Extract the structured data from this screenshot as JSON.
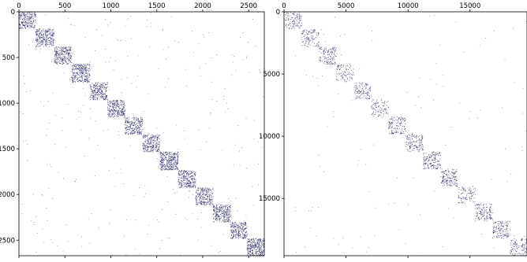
{
  "chart_data": [
    {
      "type": "heatmap",
      "title": "",
      "xlabel": "",
      "ylabel": "",
      "xlim": [
        0,
        2670
      ],
      "ylim": [
        0,
        2670
      ],
      "y_inverted": true,
      "x_axis_position": "top",
      "grid": false,
      "x_ticks": [
        0,
        500,
        1000,
        1500,
        2000,
        2500
      ],
      "y_ticks": [
        0,
        500,
        1000,
        1500,
        2000,
        2500
      ],
      "x_tick_labels": [
        "0",
        "500",
        "1000",
        "1500",
        "2000",
        "2500"
      ],
      "y_tick_labels": [
        "0",
        "500",
        "1000",
        "1500",
        "2000",
        "2500"
      ],
      "blocks": [
        {
          "start": 0,
          "end": 180,
          "density": 0.55
        },
        {
          "start": 180,
          "end": 380,
          "density": 0.55
        },
        {
          "start": 380,
          "end": 570,
          "density": 0.6
        },
        {
          "start": 570,
          "end": 770,
          "density": 0.6
        },
        {
          "start": 770,
          "end": 960,
          "density": 0.55
        },
        {
          "start": 960,
          "end": 1150,
          "density": 0.6
        },
        {
          "start": 1150,
          "end": 1340,
          "density": 0.55
        },
        {
          "start": 1340,
          "end": 1530,
          "density": 0.55
        },
        {
          "start": 1530,
          "end": 1730,
          "density": 0.7
        },
        {
          "start": 1730,
          "end": 1920,
          "density": 0.6
        },
        {
          "start": 1920,
          "end": 2110,
          "density": 0.55
        },
        {
          "start": 2110,
          "end": 2300,
          "density": 0.6
        },
        {
          "start": 2300,
          "end": 2480,
          "density": 0.6
        },
        {
          "start": 2480,
          "end": 2670,
          "density": 0.7
        }
      ],
      "background_density": 0.05,
      "marker_color": "#2b2a6b"
    },
    {
      "type": "heatmap",
      "title": "",
      "xlabel": "",
      "ylabel": "",
      "xlim": [
        0,
        19600
      ],
      "ylim": [
        0,
        19600
      ],
      "y_inverted": true,
      "x_axis_position": "top",
      "grid": false,
      "x_ticks": [
        0,
        5000,
        10000,
        15000
      ],
      "y_ticks": [
        0,
        5000,
        10000,
        15000
      ],
      "x_tick_labels": [
        "0",
        "5000",
        "10000",
        "15000"
      ],
      "y_tick_labels": [
        "0",
        "5000",
        "10000",
        "15000"
      ],
      "blocks": [
        {
          "start": 0,
          "end": 1400,
          "density": 0.25
        },
        {
          "start": 1400,
          "end": 2800,
          "density": 0.25
        },
        {
          "start": 2800,
          "end": 4200,
          "density": 0.3
        },
        {
          "start": 4200,
          "end": 5600,
          "density": 0.2
        },
        {
          "start": 5600,
          "end": 7000,
          "density": 0.25
        },
        {
          "start": 7000,
          "end": 8400,
          "density": 0.2
        },
        {
          "start": 8400,
          "end": 9800,
          "density": 0.3
        },
        {
          "start": 9800,
          "end": 11200,
          "density": 0.3
        },
        {
          "start": 11200,
          "end": 12600,
          "density": 0.35
        },
        {
          "start": 12600,
          "end": 14000,
          "density": 0.35
        },
        {
          "start": 14000,
          "end": 15400,
          "density": 0.2
        },
        {
          "start": 15400,
          "end": 16800,
          "density": 0.3
        },
        {
          "start": 16800,
          "end": 18200,
          "density": 0.3
        },
        {
          "start": 18200,
          "end": 19600,
          "density": 0.25
        }
      ],
      "background_density": 0.02,
      "marker_color": "#2b2a6b"
    }
  ]
}
